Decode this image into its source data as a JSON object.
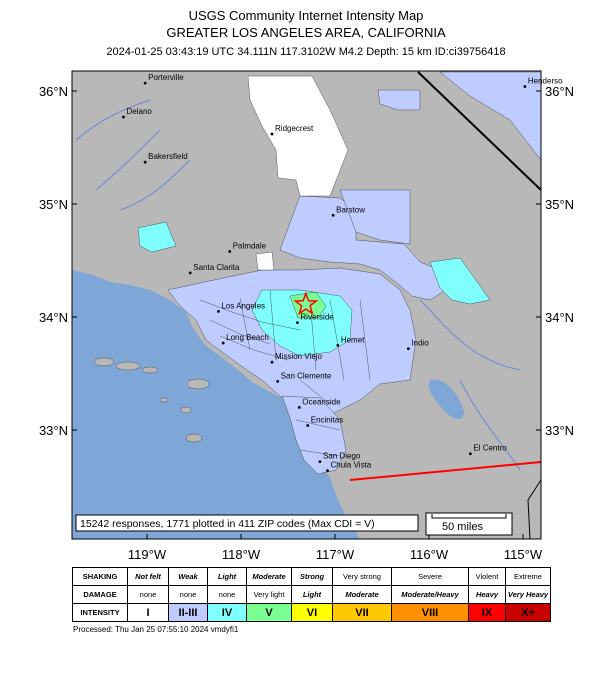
{
  "header": {
    "title": "USGS Community Internet Intensity Map",
    "region": "GREATER LOS ANGELES AREA, CALIFORNIA",
    "event_line": "2024-01-25 03:43:19 UTC 34.111N 117.3102W M4.2 Depth: 15 km ID:ci39756418"
  },
  "map": {
    "lat_labels": [
      "36°N",
      "35°N",
      "34°N",
      "33°N"
    ],
    "lon_labels": [
      "119°W",
      "118°W",
      "117°W",
      "116°W",
      "115°W"
    ],
    "cities": [
      {
        "name": "Porterville",
        "lon": -119.02,
        "lat": 36.07
      },
      {
        "name": "Delano",
        "lon": -119.25,
        "lat": 35.77
      },
      {
        "name": "Henderso",
        "lon": -114.98,
        "lat": 36.04
      },
      {
        "name": "Ridgecrest",
        "lon": -117.67,
        "lat": 35.62
      },
      {
        "name": "Bakersfield",
        "lon": -119.02,
        "lat": 35.37
      },
      {
        "name": "Barstow",
        "lon": -117.02,
        "lat": 34.9
      },
      {
        "name": "Palmdale",
        "lon": -118.12,
        "lat": 34.58
      },
      {
        "name": "Santa Clarita",
        "lon": -118.54,
        "lat": 34.39
      },
      {
        "name": "Los Angeles",
        "lon": -118.24,
        "lat": 34.05
      },
      {
        "name": "Riverside",
        "lon": -117.4,
        "lat": 33.95
      },
      {
        "name": "Long Beach",
        "lon": -118.19,
        "lat": 33.77
      },
      {
        "name": "Hemet",
        "lon": -116.97,
        "lat": 33.75
      },
      {
        "name": "Indio",
        "lon": -116.22,
        "lat": 33.72
      },
      {
        "name": "Mission Viejo",
        "lon": -117.67,
        "lat": 33.6
      },
      {
        "name": "San Clemente",
        "lon": -117.61,
        "lat": 33.43
      },
      {
        "name": "Oceanside",
        "lon": -117.38,
        "lat": 33.2
      },
      {
        "name": "Encinitas",
        "lon": -117.29,
        "lat": 33.04
      },
      {
        "name": "San Diego",
        "lon": -117.16,
        "lat": 32.72
      },
      {
        "name": "El Centro",
        "lon": -115.56,
        "lat": 32.79
      },
      {
        "name": "Chula Vista",
        "lon": -117.08,
        "lat": 32.64
      }
    ],
    "epicenter": {
      "lon": -117.3102,
      "lat": 34.111
    },
    "stats_text": "15242 responses, 1771 plotted in 411 ZIP codes (Max CDI = V)",
    "scale_text": "50 miles",
    "colors": {
      "ocean": "#7ea6d7",
      "land": "#b8b8b8",
      "epicenter": "#ff0000"
    }
  },
  "legend": {
    "row_heads": [
      "SHAKING",
      "DAMAGE",
      "INTENSITY"
    ],
    "shaking": [
      "Not felt",
      "Weak",
      "Light",
      "Moderate",
      "Strong",
      "Very strong",
      "Severe",
      "Violent",
      "Extreme"
    ],
    "damage": [
      "none",
      "none",
      "none",
      "Very light",
      "Light",
      "Moderate",
      "Moderate/Heavy",
      "Heavy",
      "Very Heavy"
    ],
    "intensity": [
      "I",
      "II-III",
      "IV",
      "V",
      "VI",
      "VII",
      "VIII",
      "IX",
      "X+"
    ],
    "colors": [
      "#ffffff",
      "#bfccff",
      "#a0e6ff",
      "#80ffff",
      "#7aff93",
      "#ffff00",
      "#ffc800",
      "#ff9100",
      "#ff0000",
      "#c80000"
    ]
  },
  "footer": {
    "processed": "Processed: Thu Jan 25 07:55:10 2024 vmdyfi1"
  }
}
